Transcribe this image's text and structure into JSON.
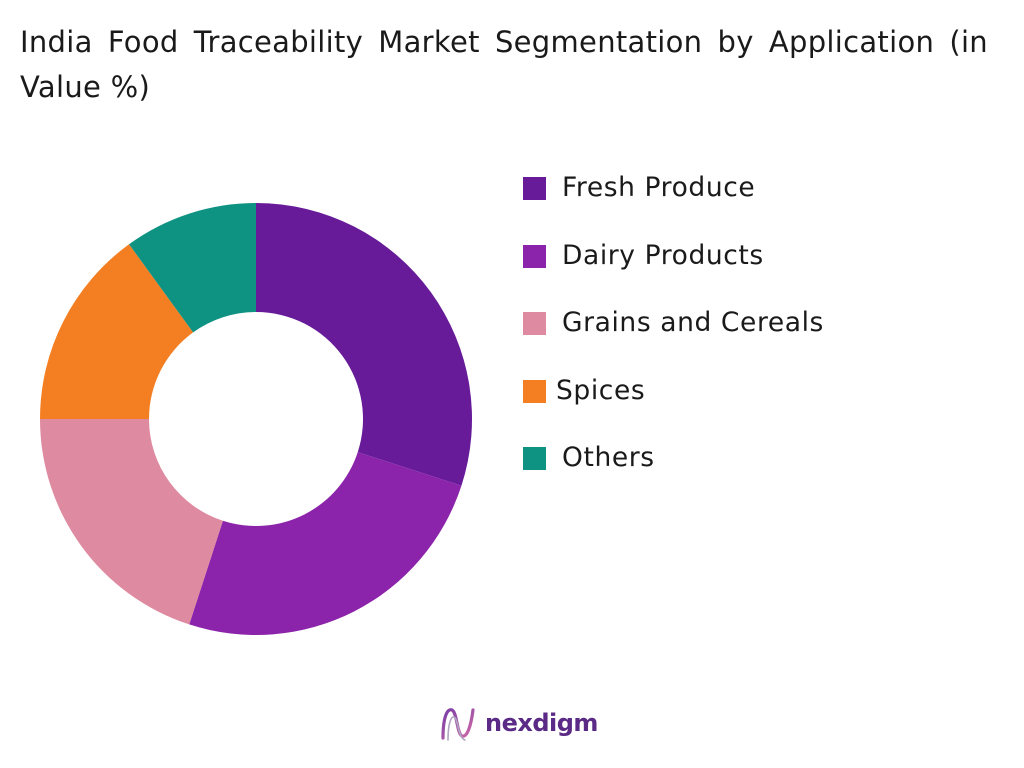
{
  "title": "India Food Traceability Market Segmentation by Application (in Value %)",
  "brand": {
    "name": "nexdigm",
    "logo_icon": "nexdigm-logo-icon"
  },
  "colors": {
    "fresh_produce": "#671b99",
    "dairy_products": "#8b24aa",
    "grains_and_cereals": "#de8aa0",
    "spices": "#f47f22",
    "others": "#0e9282",
    "brand": "#5b2a86"
  },
  "chart_data": {
    "type": "pie",
    "variant": "donut",
    "title": "India Food Traceability Market Segmentation by Application (in Value %)",
    "legend_position": "right",
    "categories": [
      "Fresh Produce",
      "Dairy Products",
      "Grains and Cereals",
      "Spices",
      "Others"
    ],
    "values": [
      30,
      25,
      20,
      15,
      10
    ],
    "unit": "%",
    "colors": [
      "#671b99",
      "#8b24aa",
      "#de8aa0",
      "#f47f22",
      "#0e9282"
    ]
  }
}
